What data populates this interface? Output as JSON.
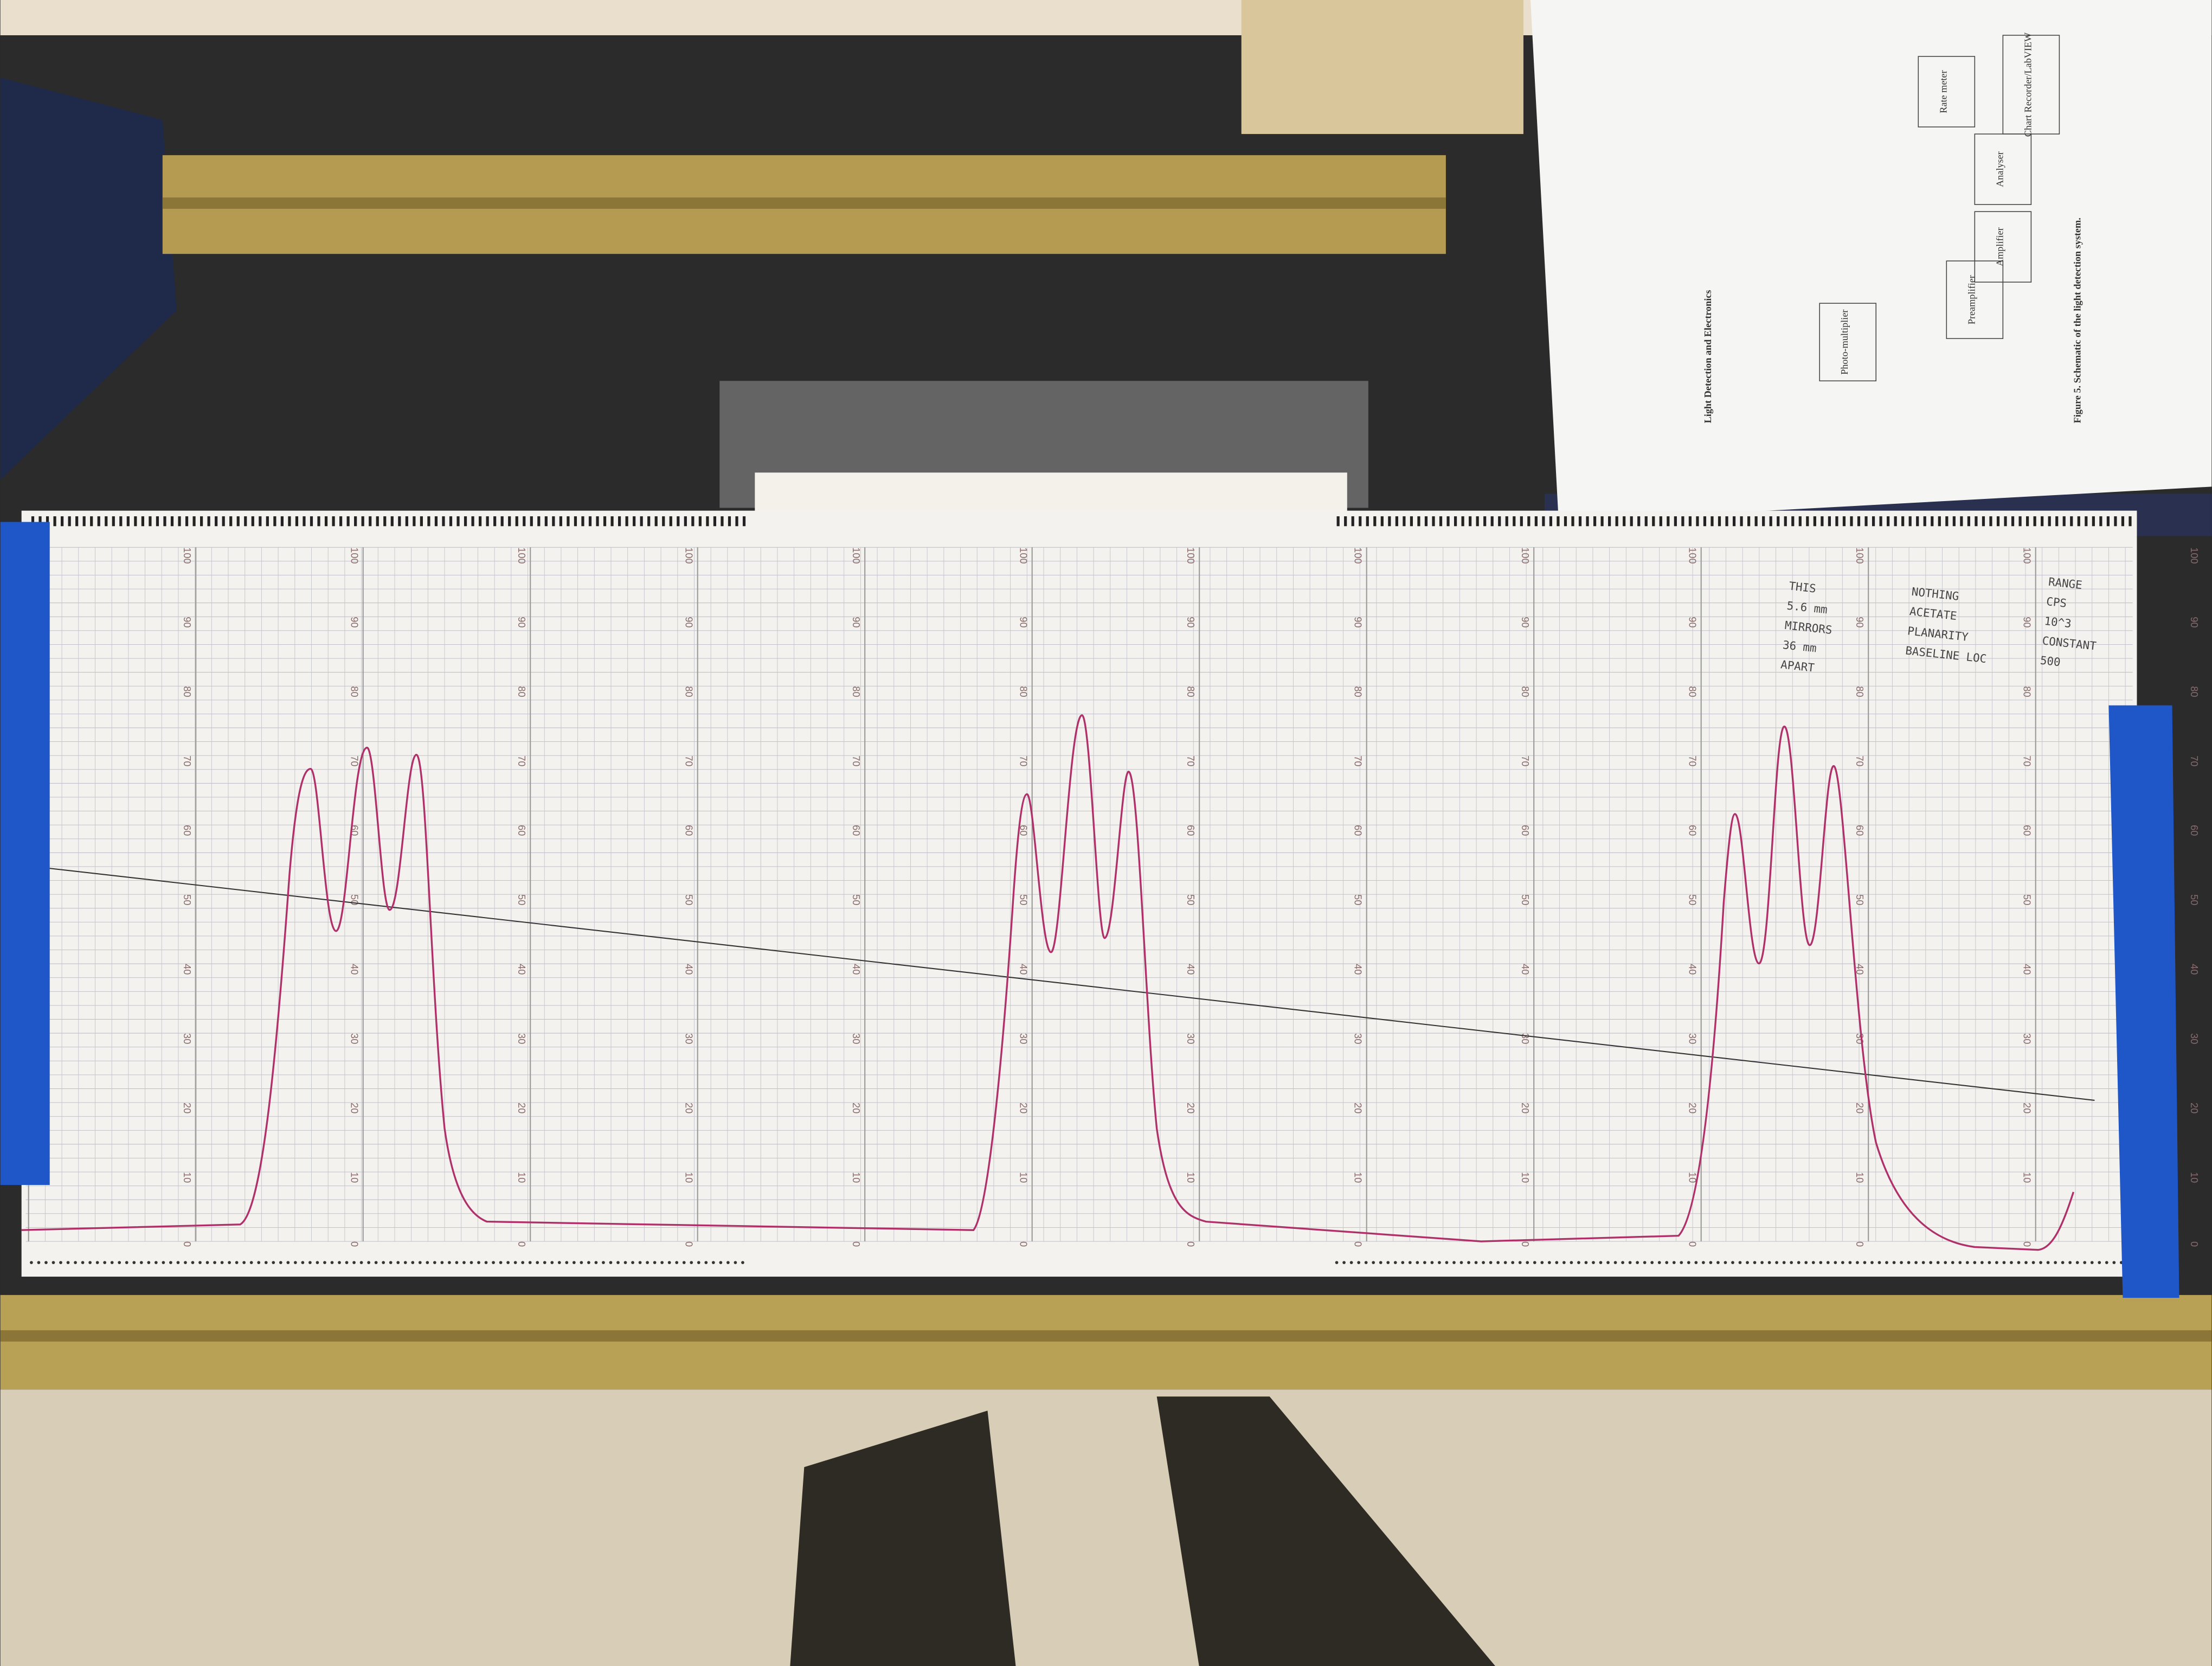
{
  "chart_paper": {
    "scale_labels": [
      "0",
      "10",
      "20",
      "30",
      "40",
      "50",
      "60",
      "70",
      "80",
      "90",
      "100"
    ]
  },
  "handwritten_notes": {
    "left": [
      "THIS",
      "5.6 mm",
      "MIRRORS",
      "36 mm",
      "APART"
    ],
    "middle": [
      "NOTHING",
      "ACETATE",
      "PLANARITY",
      "BASELINE LOC"
    ],
    "right": [
      "RANGE",
      "CPS",
      "10^3",
      "CONSTANT",
      "500"
    ]
  },
  "document": {
    "section_heading": "Light Detection and Electronics",
    "figure_caption": "Figure 5. Schematic of the light detection system.",
    "diagram": [
      "Photo-multiplier",
      "Preamplifier",
      "Amplifier",
      "Analyser",
      "Rate meter",
      "Chart Recorder/LabVIEW"
    ]
  }
}
